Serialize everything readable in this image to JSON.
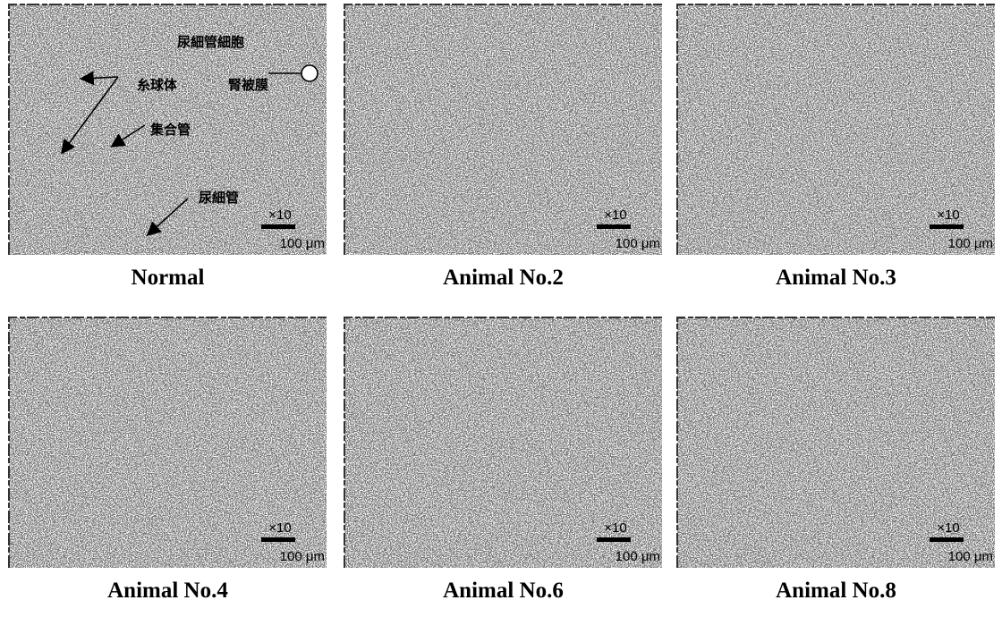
{
  "panels": [
    {
      "caption": "Normal",
      "magnification": "×10",
      "scale": "100 μm",
      "annotations": [
        "尿細管細胞",
        "糸球体",
        "腎被膜",
        "集合管",
        "尿細管"
      ]
    },
    {
      "caption": "Animal No.2",
      "magnification": "×10",
      "scale": "100 μm"
    },
    {
      "caption": "Animal No.3",
      "magnification": "×10",
      "scale": "100 μm"
    },
    {
      "caption": "Animal No.4",
      "magnification": "×10",
      "scale": "100 μm"
    },
    {
      "caption": "Animal No.6",
      "magnification": "×10",
      "scale": "100 μm"
    },
    {
      "caption": "Animal No.8",
      "magnification": "×10",
      "scale": "100 μm"
    }
  ]
}
